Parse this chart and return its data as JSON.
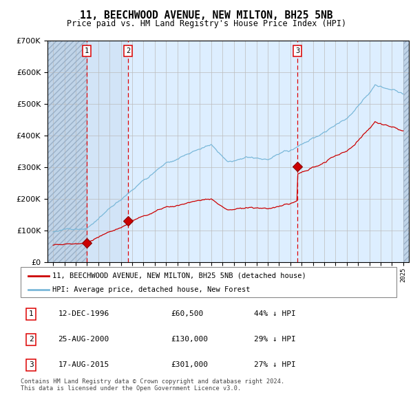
{
  "title": "11, BEECHWOOD AVENUE, NEW MILTON, BH25 5NB",
  "subtitle": "Price paid vs. HM Land Registry's House Price Index (HPI)",
  "sale1_date": 1996.95,
  "sale1_price": 60500,
  "sale2_date": 2000.65,
  "sale2_price": 130000,
  "sale3_date": 2015.65,
  "sale3_price": 301000,
  "hpi_color": "#7ab8d9",
  "price_color": "#cc0000",
  "background_color": "#ffffff",
  "plot_bg_color": "#ddeeff",
  "grid_color": "#bbbbbb",
  "legend_label_price": "11, BEECHWOOD AVENUE, NEW MILTON, BH25 5NB (detached house)",
  "legend_label_hpi": "HPI: Average price, detached house, New Forest",
  "table_entries": [
    {
      "num": "1",
      "date": "12-DEC-1996",
      "price": "£60,500",
      "note": "44% ↓ HPI"
    },
    {
      "num": "2",
      "date": "25-AUG-2000",
      "price": "£130,000",
      "note": "29% ↓ HPI"
    },
    {
      "num": "3",
      "date": "17-AUG-2015",
      "price": "£301,000",
      "note": "27% ↓ HPI"
    }
  ],
  "footnote": "Contains HM Land Registry data © Crown copyright and database right 2024.\nThis data is licensed under the Open Government Licence v3.0.",
  "ylim": [
    0,
    700000
  ],
  "xlim_start": 1993.5,
  "xlim_end": 2025.5,
  "xtick_start": 1994,
  "xtick_end": 2026
}
